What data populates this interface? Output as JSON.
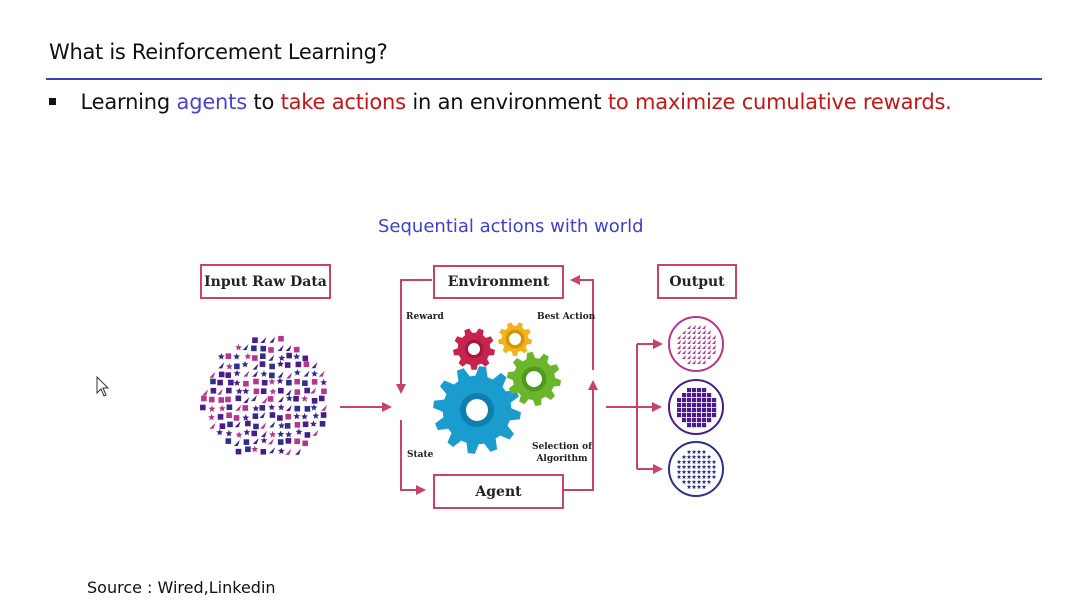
{
  "slide": {
    "title": "What is Reinforcement Learning?",
    "bullet": [
      {
        "text": "Learning ",
        "color": "black"
      },
      {
        "text": "agents",
        "color": "blue"
      },
      {
        "text": " to ",
        "color": "black"
      },
      {
        "text": "take actions",
        "color": "red"
      },
      {
        "text": " in an environment ",
        "color": "black"
      },
      {
        "text": "to maximize cumulative rewards.",
        "color": "red"
      }
    ]
  },
  "diagram": {
    "caption": "Sequential actions with world",
    "input_label": "Input Raw Data",
    "environment_label": "Environment",
    "agent_label": "Agent",
    "output_label": "Output",
    "reward_label": "Reward",
    "best_action_label": "Best Action",
    "state_label": "State",
    "selection_label_line1": "Selection of",
    "selection_label_line2": "Algorithm"
  },
  "source": "Source : Wired,Linkedin",
  "colors": {
    "accent_rule": "#3a3fc2",
    "blue_text": "#4a43d6",
    "red_text": "#c81414",
    "arrow": "#c9426a",
    "gear_blue": "#1a9ccf",
    "gear_green": "#6ab52c",
    "gear_red": "#c8234f",
    "gear_yellow": "#f2b21b",
    "cluster_purple": "#4b1a8c",
    "cluster_magenta": "#b8358f",
    "cluster_blue": "#2c2f8f"
  }
}
